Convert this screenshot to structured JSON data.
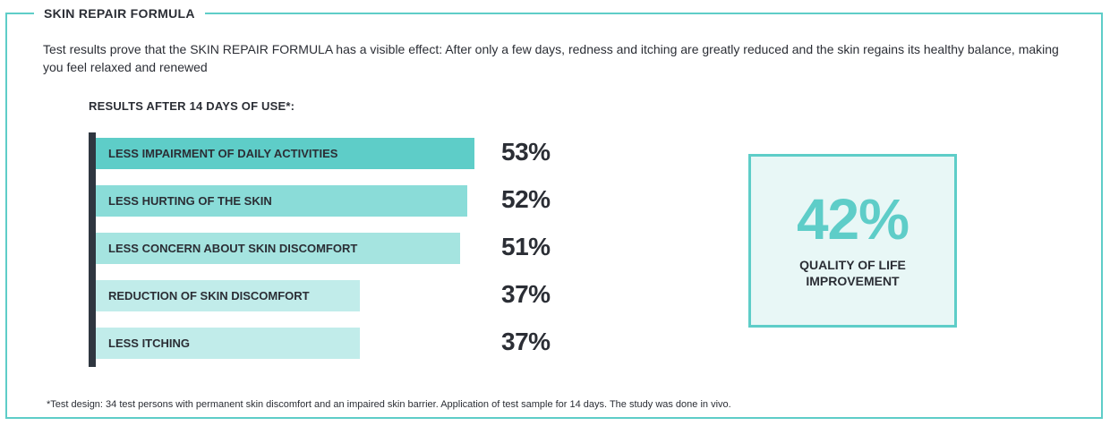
{
  "frame": {
    "title": "SKIN REPAIR FORMULA"
  },
  "intro": "Test results prove that the SKIN REPAIR FORMULA has a visible effect: After only a few days, redness and itching are greatly reduced and the skin regains its healthy balance, making you feel relaxed and renewed",
  "results_heading": "RESULTS AFTER 14 DAYS OF USE*:",
  "chart_data": {
    "type": "bar",
    "orientation": "horizontal",
    "title": "RESULTS AFTER 14 DAYS OF USE*:",
    "categories": [
      "LESS IMPAIRMENT OF DAILY ACTIVITIES",
      "LESS HURTING OF THE SKIN",
      "LESS CONCERN ABOUT SKIN DISCOMFORT",
      "REDUCTION OF SKIN DISCOMFORT",
      "LESS ITCHING"
    ],
    "values": [
      53,
      52,
      51,
      37,
      37
    ],
    "value_labels": [
      "53%",
      "52%",
      "51%",
      "37%",
      "37%"
    ],
    "unit": "%",
    "bar_colors": [
      "#5ecdc8",
      "#8adcd8",
      "#a5e4e0",
      "#c1ecea",
      "#c1ecea"
    ],
    "axis_color": "#2f3640",
    "grid": false,
    "legend": "none"
  },
  "highlight": {
    "value": "42%",
    "label_lines": [
      "QUALITY OF LIFE",
      "IMPROVEMENT"
    ],
    "accent": "#5ecdc8",
    "background": "#e8f7f6"
  },
  "footnote": "*Test design: 34 test persons with permanent skin discomfort and an impaired skin barrier. Application of test sample for 14 days. The study was done in vivo."
}
